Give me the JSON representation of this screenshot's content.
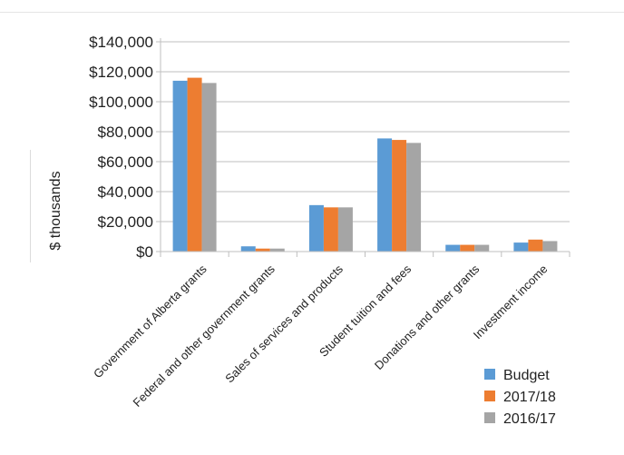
{
  "chart_data": {
    "type": "bar",
    "title": "",
    "xlabel": "",
    "ylabel": "$ thousands",
    "ylim": [
      0,
      140000
    ],
    "yticks": [
      0,
      20000,
      40000,
      60000,
      80000,
      100000,
      120000,
      140000
    ],
    "ytick_labels": [
      "$0",
      "$20,000",
      "$40,000",
      "$60,000",
      "$80,000",
      "$100,000",
      "$120,000",
      "$140,000"
    ],
    "grid": true,
    "legend_position": "bottom-right",
    "categories": [
      "Government of Alberta grants",
      "Federal and other government grants",
      "Sales of services and products",
      "Student tuition and fees",
      "Donations and other grants",
      "Investment income"
    ],
    "series": [
      {
        "name": "Budget",
        "color": "#5b9bd5",
        "values": [
          114000,
          3500,
          31000,
          75500,
          4500,
          6000
        ]
      },
      {
        "name": "2017/18",
        "color": "#ed7d31",
        "values": [
          116000,
          2000,
          29500,
          74500,
          4500,
          8000
        ]
      },
      {
        "name": "2016/17",
        "color": "#a5a5a5",
        "values": [
          112500,
          2000,
          29500,
          72500,
          4500,
          7000
        ]
      }
    ]
  }
}
